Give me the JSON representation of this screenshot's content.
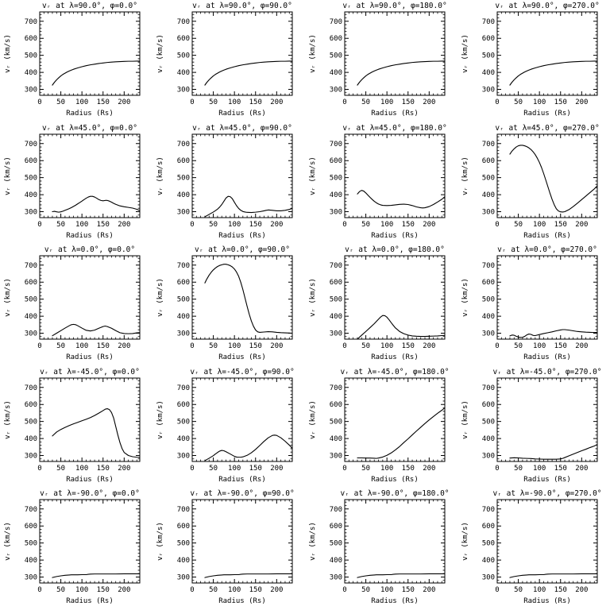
{
  "figure": {
    "background": "#ffffff",
    "line_color": "#000000",
    "grid_rows": 5,
    "grid_cols": 4,
    "axes": {
      "xlabel": "Radius (Rs)",
      "ylabel": "vᵣ (km/s)",
      "xlim": [
        0,
        237
      ],
      "ylim": [
        265,
        755
      ],
      "xticks": [
        0,
        50,
        100,
        150,
        200
      ],
      "yticks": [
        300,
        400,
        500,
        600,
        700
      ],
      "x_minor_step": 10,
      "y_minor_step": 20,
      "grid": "off",
      "legend": "none"
    }
  },
  "chart_data": [
    {
      "type": "line",
      "title": "vᵣ at λ=90.0°, φ=0.0°",
      "lambda": 90.0,
      "phi": 0.0,
      "x": [
        30,
        35,
        40,
        45,
        50,
        55,
        60,
        65,
        70,
        75,
        80,
        90,
        100,
        110,
        120,
        130,
        140,
        150,
        160,
        170,
        180,
        190,
        200,
        210,
        220,
        230,
        237
      ],
      "y": [
        325,
        342,
        356,
        368,
        379,
        388,
        395,
        402,
        408,
        413,
        418,
        426,
        433,
        439,
        444,
        448,
        452,
        455,
        458,
        460,
        462,
        463,
        464,
        465,
        465,
        466,
        466
      ]
    },
    {
      "type": "line",
      "title": "vᵣ at λ=90.0°, φ=90.0°",
      "lambda": 90.0,
      "phi": 90.0,
      "x": [
        30,
        35,
        40,
        45,
        50,
        55,
        60,
        65,
        70,
        75,
        80,
        90,
        100,
        110,
        120,
        130,
        140,
        150,
        160,
        170,
        180,
        190,
        200,
        210,
        220,
        230,
        237
      ],
      "y": [
        325,
        342,
        356,
        368,
        379,
        388,
        395,
        402,
        408,
        413,
        418,
        426,
        433,
        439,
        444,
        448,
        452,
        455,
        458,
        460,
        462,
        463,
        464,
        465,
        465,
        466,
        466
      ]
    },
    {
      "type": "line",
      "title": "vᵣ at λ=90.0°, φ=180.0°",
      "lambda": 90.0,
      "phi": 180.0,
      "x": [
        30,
        35,
        40,
        45,
        50,
        55,
        60,
        65,
        70,
        75,
        80,
        90,
        100,
        110,
        120,
        130,
        140,
        150,
        160,
        170,
        180,
        190,
        200,
        210,
        220,
        230,
        237
      ],
      "y": [
        325,
        342,
        356,
        368,
        379,
        388,
        395,
        402,
        408,
        413,
        418,
        426,
        433,
        439,
        444,
        448,
        452,
        455,
        458,
        460,
        462,
        463,
        464,
        465,
        465,
        466,
        466
      ]
    },
    {
      "type": "line",
      "title": "vᵣ at λ=90.0°, φ=270.0°",
      "lambda": 90.0,
      "phi": 270.0,
      "x": [
        30,
        35,
        40,
        45,
        50,
        55,
        60,
        65,
        70,
        75,
        80,
        90,
        100,
        110,
        120,
        130,
        140,
        150,
        160,
        170,
        180,
        190,
        200,
        210,
        220,
        230,
        237
      ],
      "y": [
        325,
        342,
        356,
        368,
        379,
        388,
        395,
        402,
        408,
        413,
        418,
        426,
        433,
        439,
        444,
        448,
        452,
        455,
        458,
        460,
        462,
        463,
        464,
        465,
        465,
        466,
        466
      ]
    },
    {
      "type": "line",
      "title": "vᵣ at λ=45.0°, φ=0.0°",
      "lambda": 45.0,
      "phi": 0.0,
      "x": [
        30,
        35,
        40,
        45,
        50,
        55,
        60,
        65,
        70,
        75,
        80,
        85,
        90,
        95,
        100,
        105,
        110,
        115,
        120,
        125,
        130,
        135,
        140,
        145,
        150,
        155,
        160,
        165,
        170,
        175,
        180,
        190,
        200,
        210,
        220,
        230,
        237
      ],
      "y": [
        300,
        302,
        299,
        297,
        299,
        303,
        308,
        313,
        318,
        324,
        331,
        338,
        346,
        354,
        362,
        371,
        379,
        386,
        390,
        390,
        386,
        379,
        371,
        366,
        364,
        366,
        366,
        362,
        356,
        349,
        343,
        334,
        329,
        325,
        321,
        314,
        306
      ]
    },
    {
      "type": "line",
      "title": "vᵣ at λ=45.0°, φ=90.0°",
      "lambda": 45.0,
      "phi": 90.0,
      "x": [
        30,
        35,
        40,
        45,
        50,
        55,
        60,
        65,
        70,
        75,
        80,
        85,
        90,
        95,
        100,
        105,
        110,
        115,
        120,
        125,
        130,
        140,
        150,
        160,
        170,
        175,
        180,
        190,
        200,
        210,
        220,
        230,
        237
      ],
      "y": [
        270,
        277,
        284,
        291,
        298,
        306,
        315,
        327,
        342,
        361,
        380,
        390,
        388,
        376,
        355,
        335,
        319,
        308,
        301,
        298,
        296,
        295,
        297,
        300,
        305,
        308,
        310,
        308,
        305,
        305,
        308,
        313,
        320
      ]
    },
    {
      "type": "line",
      "title": "vᵣ at λ=45.0°, φ=180.0°",
      "lambda": 45.0,
      "phi": 180.0,
      "x": [
        30,
        35,
        40,
        45,
        50,
        55,
        60,
        65,
        70,
        75,
        80,
        85,
        90,
        100,
        110,
        120,
        130,
        140,
        150,
        160,
        170,
        180,
        185,
        190,
        200,
        210,
        220,
        230,
        237
      ],
      "y": [
        404,
        418,
        425,
        421,
        410,
        397,
        384,
        372,
        361,
        352,
        345,
        340,
        337,
        336,
        337,
        340,
        343,
        344,
        342,
        336,
        328,
        323,
        322,
        323,
        330,
        342,
        357,
        373,
        388
      ]
    },
    {
      "type": "line",
      "title": "vᵣ at λ=45.0°, φ=270.0°",
      "lambda": 45.0,
      "phi": 270.0,
      "x": [
        30,
        35,
        40,
        45,
        50,
        55,
        60,
        65,
        70,
        75,
        80,
        85,
        90,
        95,
        100,
        105,
        110,
        115,
        120,
        125,
        130,
        135,
        140,
        145,
        150,
        155,
        160,
        170,
        180,
        190,
        200,
        210,
        220,
        230,
        237
      ],
      "y": [
        638,
        656,
        669,
        680,
        687,
        690,
        690,
        687,
        682,
        675,
        665,
        652,
        635,
        614,
        589,
        559,
        524,
        486,
        447,
        408,
        372,
        341,
        317,
        304,
        299,
        298,
        300,
        312,
        330,
        350,
        371,
        392,
        413,
        434,
        452
      ]
    },
    {
      "type": "line",
      "title": "vᵣ at λ=0.0°, φ=0.0°",
      "lambda": 0.0,
      "phi": 0.0,
      "x": [
        30,
        40,
        50,
        60,
        70,
        75,
        80,
        85,
        90,
        100,
        110,
        120,
        130,
        140,
        150,
        155,
        160,
        170,
        180,
        190,
        200,
        210,
        220,
        230,
        237
      ],
      "y": [
        285,
        300,
        315,
        330,
        344,
        350,
        352,
        350,
        344,
        330,
        317,
        313,
        318,
        329,
        339,
        342,
        339,
        329,
        315,
        303,
        298,
        297,
        298,
        302,
        303
      ]
    },
    {
      "type": "line",
      "title": "vᵣ at λ=0.0°, φ=90.0°",
      "lambda": 0.0,
      "phi": 90.0,
      "x": [
        30,
        35,
        40,
        45,
        50,
        55,
        60,
        65,
        70,
        75,
        80,
        85,
        90,
        95,
        100,
        105,
        110,
        115,
        120,
        125,
        130,
        135,
        140,
        145,
        150,
        155,
        160,
        170,
        180,
        190,
        200,
        210,
        220,
        230,
        237
      ],
      "y": [
        595,
        620,
        641,
        658,
        672,
        683,
        692,
        698,
        702,
        705,
        705,
        702,
        697,
        689,
        677,
        659,
        634,
        599,
        556,
        507,
        458,
        412,
        372,
        341,
        319,
        308,
        305,
        307,
        309,
        308,
        305,
        303,
        302,
        301,
        300
      ]
    },
    {
      "type": "line",
      "title": "vᵣ at λ=0.0°, φ=180.0°",
      "lambda": 0.0,
      "phi": 180.0,
      "x": [
        30,
        40,
        50,
        60,
        70,
        80,
        85,
        90,
        95,
        100,
        105,
        110,
        115,
        120,
        130,
        140,
        150,
        160,
        170,
        180,
        190,
        200,
        210,
        220,
        230,
        237
      ],
      "y": [
        265,
        288,
        310,
        333,
        356,
        382,
        395,
        404,
        403,
        394,
        379,
        362,
        346,
        331,
        310,
        297,
        289,
        284,
        282,
        281,
        281,
        282,
        283,
        284,
        286,
        287
      ]
    },
    {
      "type": "line",
      "title": "vᵣ at λ=0.0°, φ=270.0°",
      "lambda": 0.0,
      "phi": 270.0,
      "x": [
        30,
        35,
        40,
        45,
        50,
        55,
        60,
        65,
        70,
        75,
        80,
        85,
        90,
        100,
        110,
        120,
        130,
        140,
        150,
        155,
        160,
        170,
        180,
        190,
        200,
        210,
        220,
        230,
        237
      ],
      "y": [
        284,
        289,
        288,
        282,
        277,
        275,
        276,
        281,
        290,
        295,
        293,
        287,
        286,
        292,
        298,
        303,
        308,
        314,
        319,
        321,
        321,
        318,
        314,
        310,
        308,
        306,
        305,
        304,
        305
      ]
    },
    {
      "type": "line",
      "title": "vᵣ at λ=-45.0°, φ=0.0°",
      "lambda": -45.0,
      "phi": 0.0,
      "x": [
        30,
        40,
        50,
        60,
        70,
        80,
        90,
        100,
        110,
        120,
        130,
        140,
        150,
        155,
        160,
        165,
        170,
        175,
        180,
        185,
        190,
        195,
        200,
        210,
        220,
        230,
        237
      ],
      "y": [
        415,
        438,
        453,
        465,
        476,
        486,
        495,
        504,
        513,
        523,
        535,
        549,
        564,
        572,
        575,
        570,
        553,
        521,
        471,
        421,
        376,
        341,
        318,
        300,
        293,
        290,
        289
      ]
    },
    {
      "type": "line",
      "title": "vᵣ at λ=-45.0°, φ=90.0°",
      "lambda": -45.0,
      "phi": 90.0,
      "x": [
        30,
        40,
        50,
        55,
        60,
        65,
        70,
        75,
        80,
        90,
        100,
        105,
        110,
        115,
        120,
        130,
        140,
        150,
        160,
        170,
        180,
        190,
        195,
        200,
        210,
        220,
        230,
        237
      ],
      "y": [
        270,
        284,
        299,
        309,
        318,
        326,
        330,
        328,
        322,
        309,
        295,
        291,
        290,
        290,
        292,
        301,
        316,
        336,
        359,
        383,
        404,
        418,
        420,
        418,
        404,
        384,
        361,
        342
      ]
    },
    {
      "type": "line",
      "title": "vᵣ at λ=-45.0°, φ=180.0°",
      "lambda": -45.0,
      "phi": 180.0,
      "x": [
        30,
        40,
        50,
        60,
        70,
        75,
        80,
        90,
        100,
        110,
        120,
        130,
        140,
        150,
        160,
        170,
        180,
        190,
        200,
        210,
        220,
        230,
        237
      ],
      "y": [
        286,
        286,
        285,
        285,
        284,
        283,
        285,
        291,
        301,
        315,
        333,
        353,
        376,
        398,
        421,
        444,
        466,
        488,
        509,
        529,
        548,
        566,
        580
      ]
    },
    {
      "type": "line",
      "title": "vᵣ at λ=-45.0°, φ=270.0°",
      "lambda": -45.0,
      "phi": 270.0,
      "x": [
        30,
        40,
        50,
        60,
        70,
        80,
        90,
        100,
        110,
        120,
        130,
        140,
        150,
        155,
        160,
        170,
        180,
        190,
        200,
        210,
        220,
        230,
        237
      ],
      "y": [
        285,
        287,
        286,
        284,
        283,
        282,
        280,
        279,
        278,
        278,
        278,
        278,
        280,
        283,
        288,
        298,
        308,
        318,
        328,
        337,
        347,
        356,
        365
      ]
    },
    {
      "type": "line",
      "title": "vᵣ at λ=-90.0°, φ=0.0°",
      "lambda": -90.0,
      "phi": 0.0,
      "x": [
        30,
        40,
        50,
        60,
        70,
        75,
        80,
        90,
        100,
        110,
        115,
        120,
        130,
        140,
        160,
        180,
        200,
        220,
        237
      ],
      "y": [
        297,
        303,
        307,
        310,
        312,
        313,
        313,
        313,
        314,
        314,
        316,
        317,
        318,
        318,
        318,
        318,
        319,
        319,
        319
      ]
    },
    {
      "type": "line",
      "title": "vᵣ at λ=-90.0°, φ=90.0°",
      "lambda": -90.0,
      "phi": 90.0,
      "x": [
        30,
        40,
        50,
        60,
        70,
        75,
        80,
        90,
        100,
        110,
        115,
        120,
        130,
        140,
        160,
        180,
        200,
        220,
        237
      ],
      "y": [
        297,
        303,
        307,
        310,
        312,
        313,
        313,
        313,
        314,
        314,
        316,
        317,
        318,
        318,
        318,
        318,
        319,
        319,
        319
      ]
    },
    {
      "type": "line",
      "title": "vᵣ at λ=-90.0°, φ=180.0°",
      "lambda": -90.0,
      "phi": 180.0,
      "x": [
        30,
        40,
        50,
        60,
        70,
        75,
        80,
        90,
        100,
        110,
        115,
        120,
        130,
        140,
        160,
        180,
        200,
        220,
        237
      ],
      "y": [
        297,
        303,
        307,
        310,
        312,
        313,
        313,
        313,
        314,
        314,
        316,
        317,
        318,
        318,
        318,
        318,
        319,
        319,
        319
      ]
    },
    {
      "type": "line",
      "title": "vᵣ at λ=-90.0°, φ=270.0°",
      "lambda": -90.0,
      "phi": 270.0,
      "x": [
        30,
        40,
        50,
        60,
        70,
        75,
        80,
        90,
        100,
        110,
        115,
        120,
        130,
        140,
        160,
        180,
        200,
        220,
        237
      ],
      "y": [
        297,
        303,
        307,
        310,
        312,
        313,
        313,
        313,
        314,
        314,
        316,
        317,
        318,
        318,
        318,
        318,
        319,
        319,
        319
      ]
    }
  ]
}
